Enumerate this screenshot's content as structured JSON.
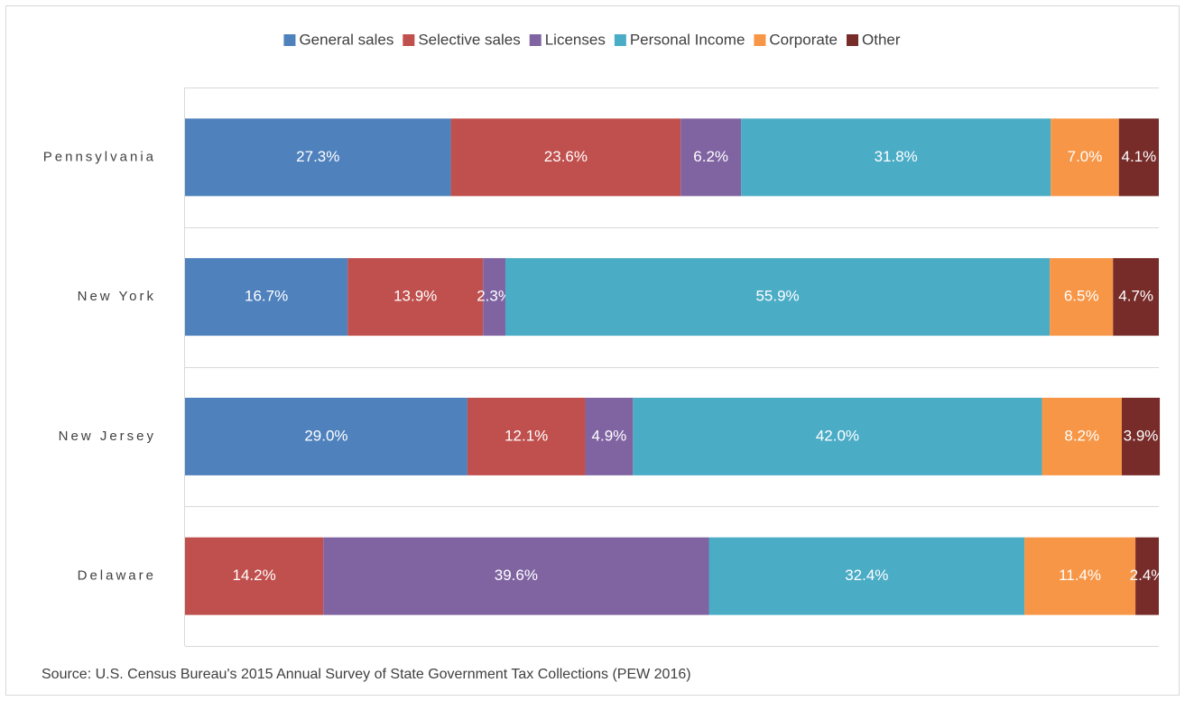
{
  "chart_data": {
    "type": "stacked-bar-horizontal",
    "categories": [
      "Pennsylvania",
      "New York",
      "New Jersey",
      "Delaware"
    ],
    "xlim": [
      0,
      100
    ],
    "series": [
      {
        "name": "General sales",
        "color": "#4f81bd",
        "values": [
          27.3,
          16.7,
          29.0,
          0
        ],
        "value_labels": [
          "27.3%",
          "16.7%",
          "29.0%",
          null
        ]
      },
      {
        "name": "Selective sales",
        "color": "#c0504d",
        "values": [
          23.6,
          13.9,
          12.1,
          14.2
        ],
        "value_labels": [
          "23.6%",
          "13.9%",
          "12.1%",
          "14.2%"
        ]
      },
      {
        "name": "Licenses",
        "color": "#8064a2",
        "values": [
          6.2,
          2.3,
          4.9,
          39.6
        ],
        "value_labels": [
          "6.2%",
          "2.3%",
          "4.9%",
          "39.6%"
        ]
      },
      {
        "name": "Personal Income",
        "color": "#4bacc6",
        "values": [
          31.8,
          55.9,
          42.0,
          32.4
        ],
        "value_labels": [
          "31.8%",
          "55.9%",
          "42.0%",
          "32.4%"
        ]
      },
      {
        "name": "Corporate",
        "color": "#f79646",
        "values": [
          7.0,
          6.5,
          8.2,
          11.4
        ],
        "value_labels": [
          "7.0%",
          "6.5%",
          "8.2%",
          "11.4%"
        ]
      },
      {
        "name": "Other",
        "color": "#772c2a",
        "values": [
          4.1,
          4.7,
          3.9,
          2.4
        ],
        "value_labels": [
          "4.1%",
          "4.7%",
          "3.9%",
          "2.4%"
        ]
      }
    ],
    "source": "Source: U.S. Census Bureau's 2015 Annual Survey of State Government Tax Collections (PEW 2016)"
  }
}
